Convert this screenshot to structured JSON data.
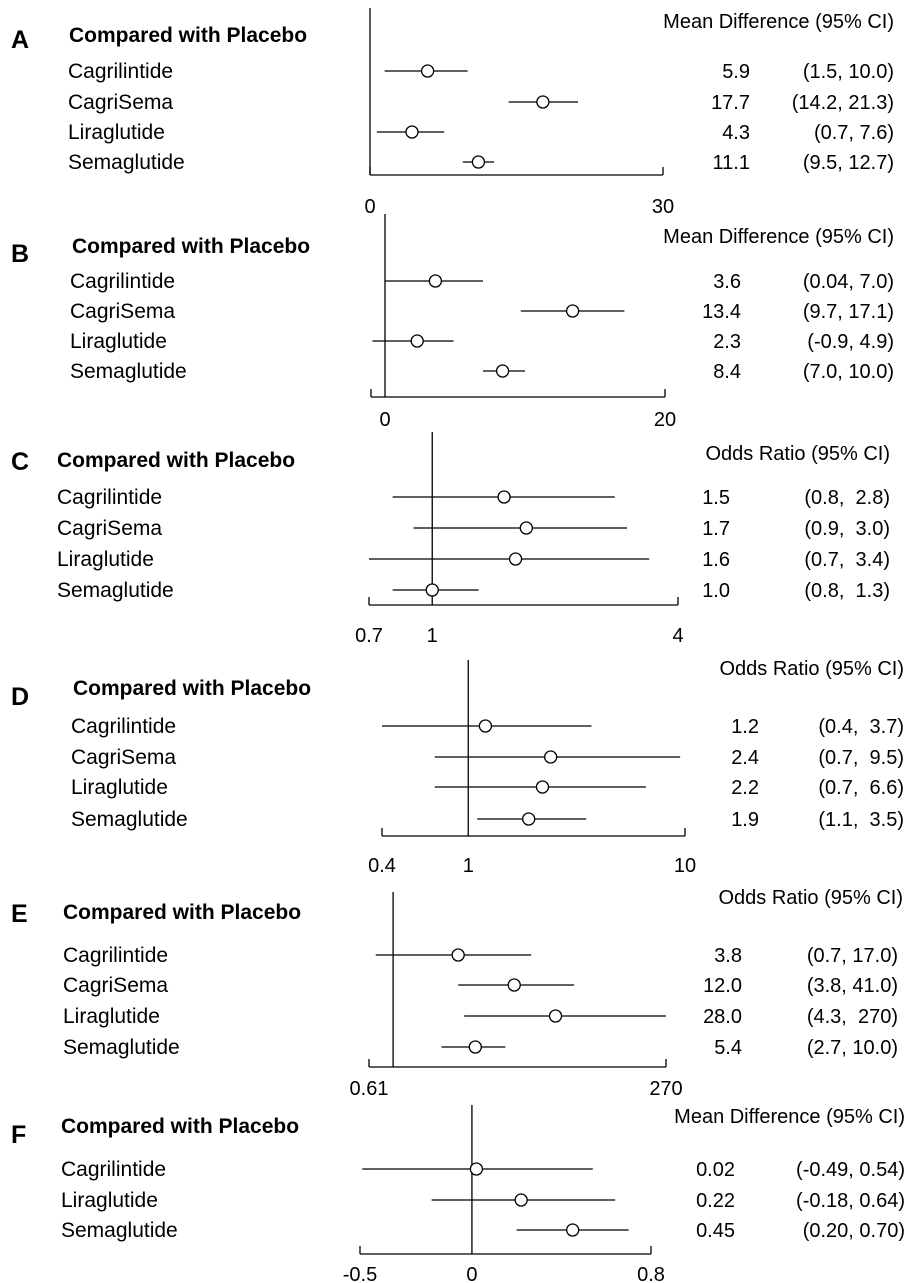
{
  "chart_data": [
    {
      "panel": "A",
      "type": "forest",
      "group_title": "Compared with Placebo",
      "stat_label": "Mean Difference (95% CI)",
      "scale": "linear",
      "xlim": [
        0,
        30
      ],
      "reference_line": 0,
      "ticks": [
        {
          "value": 0,
          "label": "0"
        },
        {
          "value": 30,
          "label": "30"
        }
      ],
      "rows": [
        {
          "label": "Cagrilintide",
          "estimate": 5.9,
          "lower": 1.5,
          "upper": 10.0,
          "est_text": "5.9",
          "ci_text": "(1.5, 10.0)"
        },
        {
          "label": "CagriSema",
          "estimate": 17.7,
          "lower": 14.2,
          "upper": 21.3,
          "est_text": "17.7",
          "ci_text": "(14.2, 21.3)"
        },
        {
          "label": "Liraglutide",
          "estimate": 4.3,
          "lower": 0.7,
          "upper": 7.6,
          "est_text": "4.3",
          "ci_text": "(0.7, 7.6)"
        },
        {
          "label": "Semaglutide",
          "estimate": 11.1,
          "lower": 9.5,
          "upper": 12.7,
          "est_text": "11.1",
          "ci_text": "(9.5, 12.7)"
        }
      ]
    },
    {
      "panel": "B",
      "type": "forest",
      "group_title": "Compared with Placebo",
      "stat_label": "Mean Difference (95% CI)",
      "scale": "linear",
      "xlim": [
        -1,
        20
      ],
      "reference_line": 0,
      "ticks": [
        {
          "value": 0,
          "label": "0"
        },
        {
          "value": 20,
          "label": "20"
        }
      ],
      "rows": [
        {
          "label": "Cagrilintide",
          "estimate": 3.6,
          "lower": 0.04,
          "upper": 7.0,
          "est_text": "3.6",
          "ci_text": "(0.04, 7.0)"
        },
        {
          "label": "CagriSema",
          "estimate": 13.4,
          "lower": 9.7,
          "upper": 17.1,
          "est_text": "13.4",
          "ci_text": "(9.7, 17.1)"
        },
        {
          "label": "Liraglutide",
          "estimate": 2.3,
          "lower": -0.9,
          "upper": 4.9,
          "est_text": "2.3",
          "ci_text": "(-0.9, 4.9)"
        },
        {
          "label": "Semaglutide",
          "estimate": 8.4,
          "lower": 7.0,
          "upper": 10.0,
          "est_text": "8.4",
          "ci_text": "(7.0, 10.0)"
        }
      ]
    },
    {
      "panel": "C",
      "type": "forest",
      "group_title": "Compared with Placebo",
      "stat_label": "Odds Ratio (95% CI)",
      "scale": "log",
      "xlim": [
        0.7,
        4
      ],
      "reference_line": 1,
      "ticks": [
        {
          "value": 0.7,
          "label": "0.7"
        },
        {
          "value": 1,
          "label": "1"
        },
        {
          "value": 4,
          "label": "4"
        }
      ],
      "rows": [
        {
          "label": "Cagrilintide",
          "estimate": 1.5,
          "lower": 0.8,
          "upper": 2.8,
          "est_text": "1.5",
          "ci_text": "(0.8,  2.8)"
        },
        {
          "label": "CagriSema",
          "estimate": 1.7,
          "lower": 0.9,
          "upper": 3.0,
          "est_text": "1.7",
          "ci_text": "(0.9,  3.0)"
        },
        {
          "label": "Liraglutide",
          "estimate": 1.6,
          "lower": 0.7,
          "upper": 3.4,
          "est_text": "1.6",
          "ci_text": "(0.7,  3.4)"
        },
        {
          "label": "Semaglutide",
          "estimate": 1.0,
          "lower": 0.8,
          "upper": 1.3,
          "est_text": "1.0",
          "ci_text": "(0.8,  1.3)"
        }
      ]
    },
    {
      "panel": "D",
      "type": "forest",
      "group_title": "Compared with Placebo",
      "stat_label": "Odds Ratio (95% CI)",
      "scale": "log",
      "xlim": [
        0.4,
        10
      ],
      "reference_line": 1,
      "ticks": [
        {
          "value": 0.4,
          "label": "0.4"
        },
        {
          "value": 1,
          "label": "1"
        },
        {
          "value": 10,
          "label": "10"
        }
      ],
      "rows": [
        {
          "label": "Cagrilintide",
          "estimate": 1.2,
          "lower": 0.4,
          "upper": 3.7,
          "est_text": "1.2",
          "ci_text": "(0.4,  3.7)"
        },
        {
          "label": "CagriSema",
          "estimate": 2.4,
          "lower": 0.7,
          "upper": 9.5,
          "est_text": "2.4",
          "ci_text": "(0.7,  9.5)"
        },
        {
          "label": "Liraglutide",
          "estimate": 2.2,
          "lower": 0.7,
          "upper": 6.6,
          "est_text": "2.2",
          "ci_text": "(0.7,  6.6)"
        },
        {
          "label": "Semaglutide",
          "estimate": 1.9,
          "lower": 1.1,
          "upper": 3.5,
          "est_text": "1.9",
          "ci_text": "(1.1,  3.5)"
        }
      ]
    },
    {
      "panel": "E",
      "type": "forest",
      "group_title": "Compared with Placebo",
      "stat_label": "Odds Ratio (95% CI)",
      "scale": "log",
      "xlim": [
        0.61,
        270
      ],
      "reference_line": 1,
      "ticks": [
        {
          "value": 0.61,
          "label": "0.61"
        },
        {
          "value": 270,
          "label": "270"
        }
      ],
      "rows": [
        {
          "label": "Cagrilintide",
          "estimate": 3.8,
          "lower": 0.7,
          "upper": 17.0,
          "est_text": "3.8",
          "ci_text": "(0.7, 17.0)"
        },
        {
          "label": "CagriSema",
          "estimate": 12.0,
          "lower": 3.8,
          "upper": 41.0,
          "est_text": "12.0",
          "ci_text": "(3.8, 41.0)"
        },
        {
          "label": "Liraglutide",
          "estimate": 28.0,
          "lower": 4.3,
          "upper": 270,
          "est_text": "28.0",
          "ci_text": "(4.3,  270)"
        },
        {
          "label": "Semaglutide",
          "estimate": 5.4,
          "lower": 2.7,
          "upper": 10.0,
          "est_text": "5.4",
          "ci_text": "(2.7, 10.0)"
        }
      ]
    },
    {
      "panel": "F",
      "type": "forest",
      "group_title": "Compared with Placebo",
      "stat_label": "Mean Difference (95% CI)",
      "scale": "linear",
      "xlim": [
        -0.5,
        0.8
      ],
      "reference_line": 0,
      "ticks": [
        {
          "value": -0.5,
          "label": "-0.5"
        },
        {
          "value": 0,
          "label": "0"
        },
        {
          "value": 0.8,
          "label": "0.8"
        }
      ],
      "rows": [
        {
          "label": "Cagrilintide",
          "estimate": 0.02,
          "lower": -0.49,
          "upper": 0.54,
          "est_text": "0.02",
          "ci_text": "(-0.49, 0.54)"
        },
        {
          "label": "Liraglutide",
          "estimate": 0.22,
          "lower": -0.18,
          "upper": 0.64,
          "est_text": "0.22",
          "ci_text": "(-0.18, 0.64)"
        },
        {
          "label": "Semaglutide",
          "estimate": 0.45,
          "lower": 0.2,
          "upper": 0.7,
          "est_text": "0.45",
          "ci_text": "(0.20, 0.70)"
        }
      ]
    }
  ]
}
